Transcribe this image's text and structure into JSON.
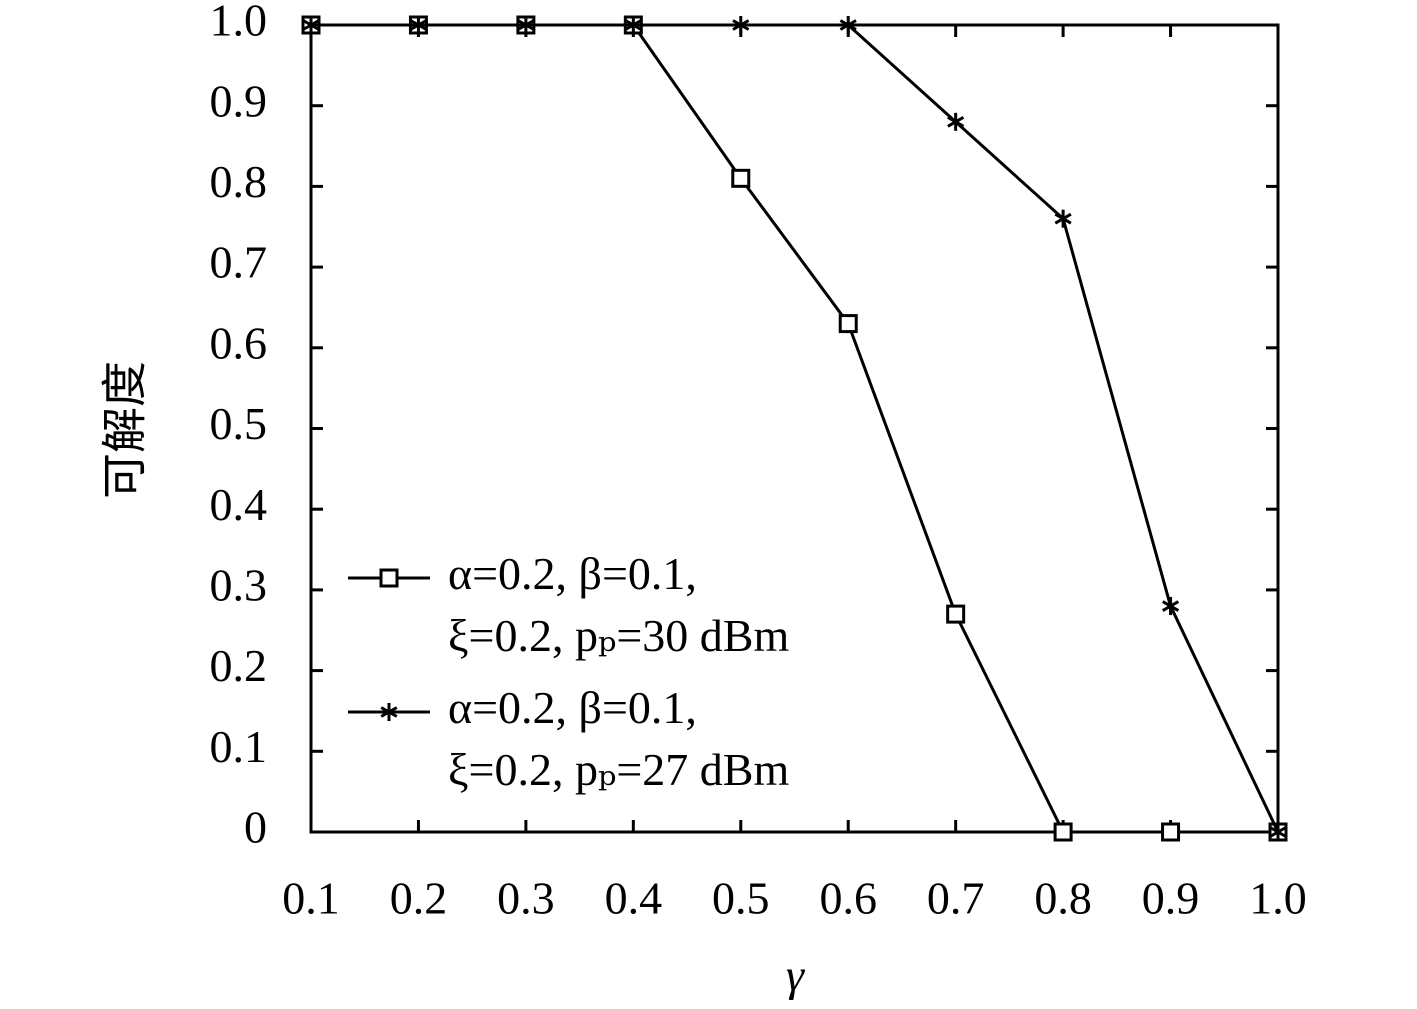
{
  "chart_data": {
    "type": "line",
    "x": [
      0.1,
      0.2,
      0.3,
      0.4,
      0.5,
      0.6,
      0.7,
      0.8,
      0.9,
      1.0
    ],
    "xlabel": "γ",
    "ylabel": "可解度",
    "xlim": [
      0.1,
      1.0
    ],
    "ylim": [
      0,
      1.0
    ],
    "xticks": [
      0.1,
      0.2,
      0.3,
      0.4,
      0.5,
      0.6,
      0.7,
      0.8,
      0.9,
      {
        "value": 1.0,
        "label": "1.0"
      }
    ],
    "yticks": [
      0,
      0.1,
      0.2,
      0.3,
      0.4,
      0.5,
      0.6,
      0.7,
      0.8,
      0.9,
      {
        "value": 1.0,
        "label": "1.0"
      }
    ],
    "grid": false,
    "legend": "lower left",
    "series": [
      {
        "name": "α=0.2, β=0.1, ξ=0.2, pₚ=30 dBm",
        "color": "#000000",
        "marker": "square",
        "values": [
          1,
          1,
          1,
          1,
          0.81,
          0.63,
          0.27,
          0,
          0,
          0
        ]
      },
      {
        "name": "α=0.2, β=0.1, ξ=0.2, pₚ=27 dBm",
        "color": "#000000",
        "marker": "star",
        "values": [
          1,
          1,
          1,
          1,
          1,
          1,
          0.88,
          0.76,
          0.28,
          0
        ]
      }
    ]
  }
}
